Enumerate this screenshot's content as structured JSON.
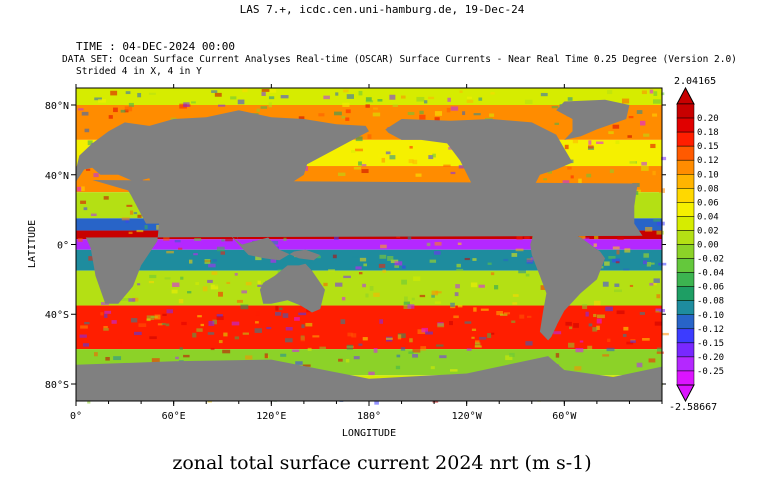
{
  "header": {
    "title": "LAS 7.+, icdc.cen.uni-hamburg.de, 19-Dec-24",
    "time_label": "TIME : 04-DEC-2024 00:00",
    "dataset_label": "DATA SET: Ocean Surface Current Analyses Real-time (OSCAR) Surface Currents - Near Real Time 0.25 Degree (Version 2.0)",
    "strided_label": "Strided 4 in X, 4 in Y"
  },
  "caption": "zonal total surface current 2024 nrt (m s-1)",
  "chart_data": {
    "type": "heatmap",
    "title": "zonal total surface current 2024 nrt (m s-1)",
    "xlabel": "LONGITUDE",
    "ylabel": "LATITUDE",
    "x_ticks": [
      "0°",
      "60°E",
      "120°E",
      "180°",
      "120°W",
      "60°W"
    ],
    "x_tick_values": [
      0,
      60,
      120,
      180,
      240,
      300
    ],
    "y_ticks": [
      "80°N",
      "40°N",
      "0°",
      "40°S",
      "80°S"
    ],
    "y_tick_values": [
      80,
      40,
      0,
      -40,
      -80
    ],
    "xlim": [
      0,
      360
    ],
    "ylim": [
      -89.75,
      89.75
    ],
    "colorbar": {
      "max_label": "2.04165",
      "min_label": "-2.58667",
      "levels": [
        "0.20",
        "0.18",
        "0.15",
        "0.12",
        "0.10",
        "0.08",
        "0.06",
        "0.04",
        "0.02",
        "0.00",
        "-0.02",
        "-0.04",
        "-0.06",
        "-0.08",
        "-0.10",
        "-0.12",
        "-0.15",
        "-0.20",
        "-0.25"
      ],
      "colors": [
        "#c80000",
        "#e00000",
        "#ff1e00",
        "#ff5a00",
        "#ff8c00",
        "#ffb400",
        "#ffd800",
        "#f5f000",
        "#d6ec00",
        "#b4e014",
        "#8cd228",
        "#64c83c",
        "#3cb450",
        "#1e9e64",
        "#1e8c9e",
        "#2864c8",
        "#3c3cff",
        "#7828ff",
        "#b428ff",
        "#dc14ff"
      ]
    },
    "land_color": "#808080",
    "ocean_bands": [
      {
        "lat_from": 89.75,
        "lat_to": 80,
        "level": "0.02"
      },
      {
        "lat_from": 80,
        "lat_to": 60,
        "level": "0.10"
      },
      {
        "lat_from": 60,
        "lat_to": 45,
        "level": "0.04"
      },
      {
        "lat_from": 45,
        "lat_to": 30,
        "level": "0.10"
      },
      {
        "lat_from": 30,
        "lat_to": 15,
        "level": "0.00"
      },
      {
        "lat_from": 15,
        "lat_to": 8,
        "level": "-0.12"
      },
      {
        "lat_from": 8,
        "lat_to": 3,
        "level": "0.20"
      },
      {
        "lat_from": 3,
        "lat_to": -3,
        "level": "-0.25"
      },
      {
        "lat_from": -3,
        "lat_to": -15,
        "level": "-0.10"
      },
      {
        "lat_from": -15,
        "lat_to": -35,
        "level": "0.00"
      },
      {
        "lat_from": -35,
        "lat_to": -60,
        "level": "0.15"
      },
      {
        "lat_from": -60,
        "lat_to": -75,
        "level": "-0.02"
      },
      {
        "lat_from": -75,
        "lat_to": -89.75,
        "level": "0.02"
      }
    ]
  }
}
